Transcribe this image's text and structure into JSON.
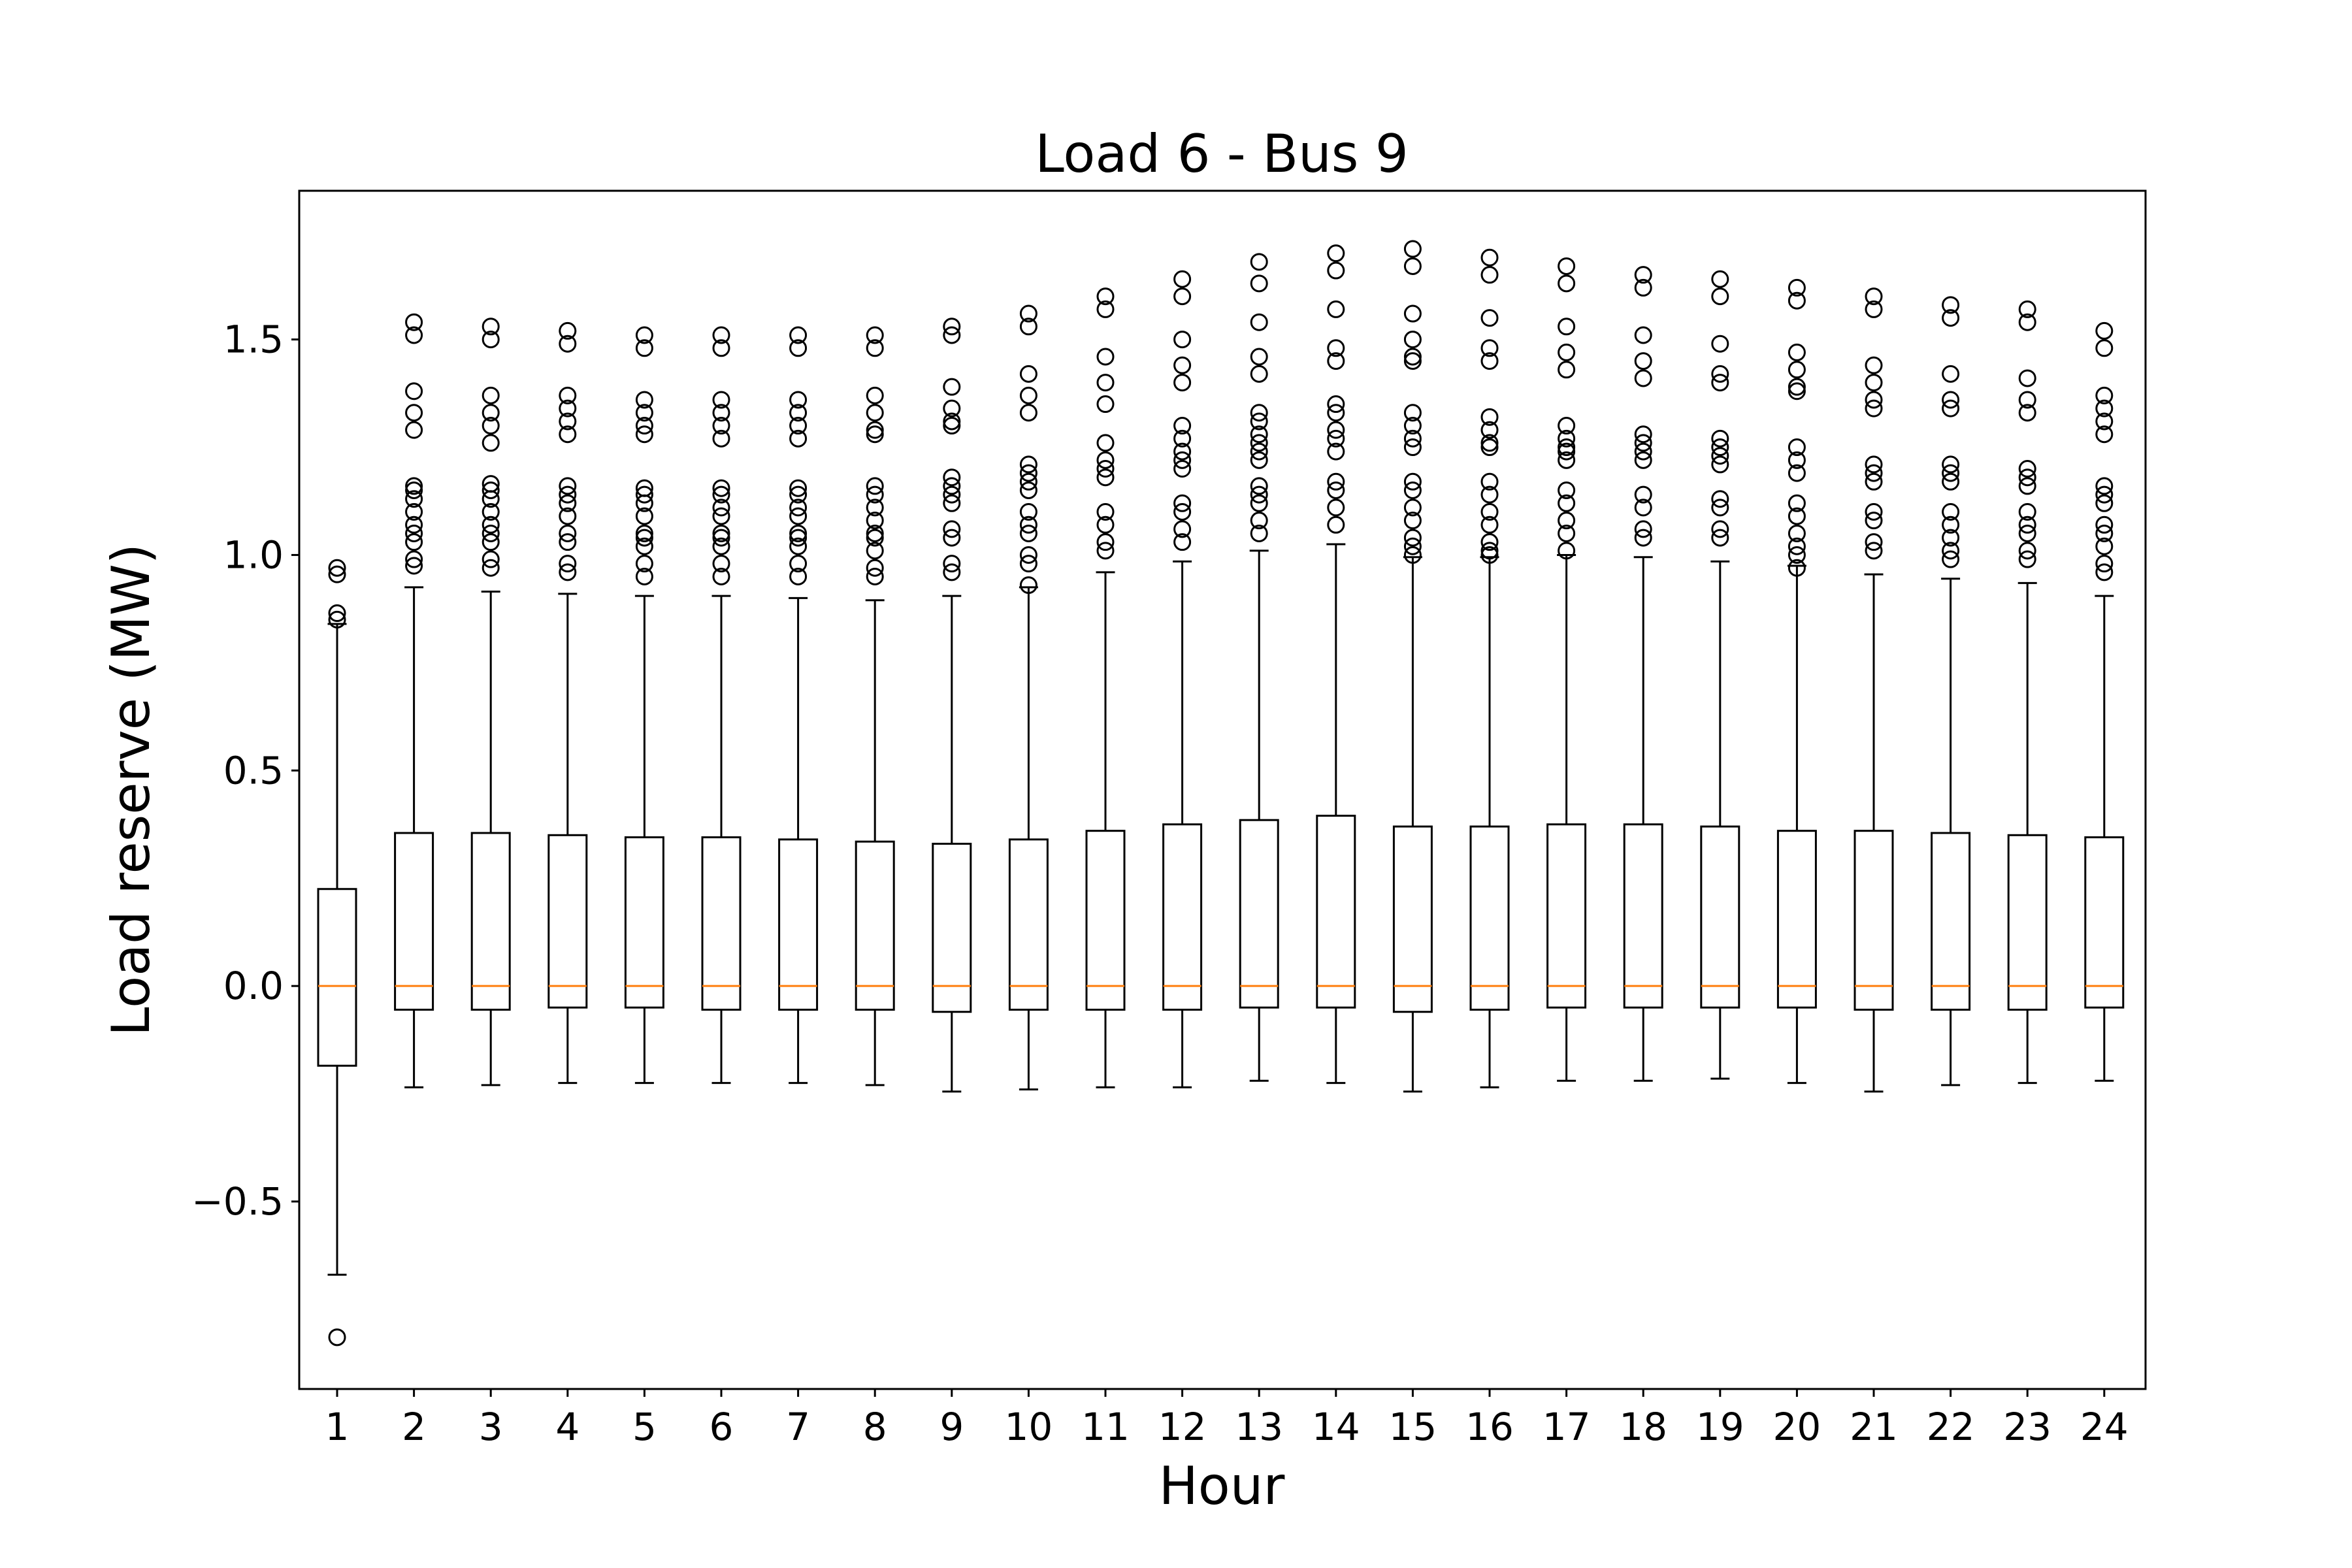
{
  "chart_data": {
    "type": "boxplot",
    "title": "Load 6 - Bus 9",
    "xlabel": "Hour",
    "ylabel": "Load reserve (MW)",
    "ylim": [
      -0.935,
      1.845
    ],
    "yticks": [
      {
        "value": -0.5,
        "label": "−0.5"
      },
      {
        "value": 0.0,
        "label": "0.0"
      },
      {
        "value": 0.5,
        "label": "0.5"
      },
      {
        "value": 1.0,
        "label": "1.0"
      },
      {
        "value": 1.5,
        "label": "1.5"
      }
    ],
    "categories": [
      "1",
      "2",
      "3",
      "4",
      "5",
      "6",
      "7",
      "8",
      "9",
      "10",
      "11",
      "12",
      "13",
      "14",
      "15",
      "16",
      "17",
      "18",
      "19",
      "20",
      "21",
      "22",
      "23",
      "24"
    ],
    "colors": {
      "box": "#000000",
      "median": "#ff7f0e",
      "flier": "#000000"
    },
    "boxes": [
      {
        "whislo": -0.67,
        "q1": -0.185,
        "med": 0.0,
        "q3": 0.225,
        "whishi": 0.84,
        "fliers": [
          -0.815,
          0.865,
          0.85,
          0.955,
          0.97
        ]
      },
      {
        "whislo": -0.235,
        "q1": -0.055,
        "med": 0.0,
        "q3": 0.355,
        "whishi": 0.925,
        "fliers": [
          0.975,
          0.99,
          1.03,
          1.05,
          1.07,
          1.1,
          1.13,
          1.15,
          1.16,
          1.29,
          1.33,
          1.38,
          1.51,
          1.54
        ]
      },
      {
        "whislo": -0.23,
        "q1": -0.055,
        "med": 0.0,
        "q3": 0.355,
        "whishi": 0.915,
        "fliers": [
          0.97,
          0.99,
          1.03,
          1.05,
          1.07,
          1.1,
          1.13,
          1.15,
          1.165,
          1.26,
          1.3,
          1.33,
          1.37,
          1.5,
          1.53
        ]
      },
      {
        "whislo": -0.225,
        "q1": -0.05,
        "med": 0.0,
        "q3": 0.35,
        "whishi": 0.91,
        "fliers": [
          0.96,
          0.98,
          1.03,
          1.05,
          1.09,
          1.12,
          1.14,
          1.16,
          1.28,
          1.31,
          1.34,
          1.37,
          1.49,
          1.52
        ]
      },
      {
        "whislo": -0.225,
        "q1": -0.05,
        "med": 0.0,
        "q3": 0.345,
        "whishi": 0.905,
        "fliers": [
          0.95,
          0.98,
          1.02,
          1.04,
          1.05,
          1.09,
          1.12,
          1.14,
          1.155,
          1.28,
          1.3,
          1.33,
          1.36,
          1.48,
          1.51
        ]
      },
      {
        "whislo": -0.225,
        "q1": -0.055,
        "med": 0.0,
        "q3": 0.345,
        "whishi": 0.905,
        "fliers": [
          0.95,
          0.98,
          1.02,
          1.04,
          1.05,
          1.09,
          1.11,
          1.14,
          1.155,
          1.27,
          1.3,
          1.33,
          1.36,
          1.48,
          1.51
        ]
      },
      {
        "whislo": -0.225,
        "q1": -0.055,
        "med": 0.0,
        "q3": 0.34,
        "whishi": 0.9,
        "fliers": [
          0.95,
          0.98,
          1.02,
          1.04,
          1.05,
          1.09,
          1.11,
          1.14,
          1.155,
          1.27,
          1.3,
          1.33,
          1.36,
          1.48,
          1.51
        ]
      },
      {
        "whislo": -0.23,
        "q1": -0.055,
        "med": 0.0,
        "q3": 0.335,
        "whishi": 0.895,
        "fliers": [
          0.95,
          0.97,
          1.01,
          1.04,
          1.05,
          1.08,
          1.11,
          1.14,
          1.16,
          1.28,
          1.29,
          1.33,
          1.37,
          1.48,
          1.51
        ]
      },
      {
        "whislo": -0.245,
        "q1": -0.06,
        "med": 0.0,
        "q3": 0.33,
        "whishi": 0.905,
        "fliers": [
          0.96,
          0.98,
          1.04,
          1.06,
          1.12,
          1.14,
          1.16,
          1.18,
          1.3,
          1.31,
          1.34,
          1.39,
          1.51,
          1.53
        ]
      },
      {
        "whislo": -0.24,
        "q1": -0.055,
        "med": 0.0,
        "q3": 0.34,
        "whishi": 0.925,
        "fliers": [
          0.93,
          0.98,
          1.0,
          1.05,
          1.07,
          1.1,
          1.15,
          1.17,
          1.19,
          1.21,
          1.33,
          1.37,
          1.42,
          1.53,
          1.56
        ]
      },
      {
        "whislo": -0.235,
        "q1": -0.055,
        "med": 0.0,
        "q3": 0.36,
        "whishi": 0.96,
        "fliers": [
          1.01,
          1.03,
          1.07,
          1.1,
          1.18,
          1.2,
          1.22,
          1.26,
          1.35,
          1.4,
          1.46,
          1.57,
          1.6
        ]
      },
      {
        "whislo": -0.235,
        "q1": -0.055,
        "med": 0.0,
        "q3": 0.375,
        "whishi": 0.985,
        "fliers": [
          1.03,
          1.06,
          1.1,
          1.12,
          1.2,
          1.22,
          1.24,
          1.27,
          1.3,
          1.4,
          1.44,
          1.5,
          1.6,
          1.64
        ]
      },
      {
        "whislo": -0.22,
        "q1": -0.05,
        "med": 0.0,
        "q3": 0.385,
        "whishi": 1.01,
        "fliers": [
          1.05,
          1.08,
          1.12,
          1.14,
          1.16,
          1.22,
          1.24,
          1.26,
          1.28,
          1.31,
          1.33,
          1.42,
          1.46,
          1.54,
          1.63,
          1.68
        ]
      },
      {
        "whislo": -0.225,
        "q1": -0.05,
        "med": 0.0,
        "q3": 0.395,
        "whishi": 1.025,
        "fliers": [
          1.07,
          1.11,
          1.15,
          1.17,
          1.24,
          1.27,
          1.29,
          1.33,
          1.35,
          1.45,
          1.48,
          1.57,
          1.66,
          1.7
        ]
      },
      {
        "whislo": -0.245,
        "q1": -0.06,
        "med": 0.0,
        "q3": 0.37,
        "whishi": 0.995,
        "fliers": [
          1.0,
          1.02,
          1.04,
          1.08,
          1.11,
          1.15,
          1.17,
          1.25,
          1.27,
          1.3,
          1.33,
          1.45,
          1.46,
          1.5,
          1.56,
          1.67,
          1.71
        ]
      },
      {
        "whislo": -0.235,
        "q1": -0.055,
        "med": 0.0,
        "q3": 0.37,
        "whishi": 0.995,
        "fliers": [
          1.0,
          1.01,
          1.03,
          1.07,
          1.1,
          1.14,
          1.17,
          1.25,
          1.26,
          1.29,
          1.32,
          1.45,
          1.48,
          1.55,
          1.65,
          1.69
        ]
      },
      {
        "whislo": -0.22,
        "q1": -0.05,
        "med": 0.0,
        "q3": 0.375,
        "whishi": 1.0,
        "fliers": [
          1.01,
          1.05,
          1.08,
          1.12,
          1.15,
          1.22,
          1.24,
          1.25,
          1.27,
          1.3,
          1.43,
          1.47,
          1.53,
          1.63,
          1.67
        ]
      },
      {
        "whislo": -0.22,
        "q1": -0.05,
        "med": 0.0,
        "q3": 0.375,
        "whishi": 0.995,
        "fliers": [
          1.04,
          1.06,
          1.11,
          1.14,
          1.22,
          1.24,
          1.26,
          1.28,
          1.41,
          1.45,
          1.51,
          1.62,
          1.65
        ]
      },
      {
        "whislo": -0.215,
        "q1": -0.05,
        "med": 0.0,
        "q3": 0.37,
        "whishi": 0.985,
        "fliers": [
          1.04,
          1.06,
          1.11,
          1.13,
          1.21,
          1.23,
          1.25,
          1.27,
          1.4,
          1.42,
          1.49,
          1.6,
          1.64
        ]
      },
      {
        "whislo": -0.225,
        "q1": -0.05,
        "med": 0.0,
        "q3": 0.36,
        "whishi": 0.975,
        "fliers": [
          0.97,
          1.0,
          1.02,
          1.05,
          1.09,
          1.12,
          1.19,
          1.22,
          1.25,
          1.38,
          1.39,
          1.43,
          1.47,
          1.59,
          1.62
        ]
      },
      {
        "whislo": -0.245,
        "q1": -0.055,
        "med": 0.0,
        "q3": 0.36,
        "whishi": 0.955,
        "fliers": [
          1.01,
          1.03,
          1.08,
          1.1,
          1.17,
          1.19,
          1.21,
          1.34,
          1.36,
          1.4,
          1.44,
          1.57,
          1.6
        ]
      },
      {
        "whislo": -0.23,
        "q1": -0.055,
        "med": 0.0,
        "q3": 0.355,
        "whishi": 0.945,
        "fliers": [
          0.99,
          1.01,
          1.04,
          1.07,
          1.1,
          1.17,
          1.19,
          1.21,
          1.34,
          1.36,
          1.42,
          1.55,
          1.58
        ]
      },
      {
        "whislo": -0.225,
        "q1": -0.055,
        "med": 0.0,
        "q3": 0.35,
        "whishi": 0.935,
        "fliers": [
          0.99,
          1.01,
          1.05,
          1.07,
          1.1,
          1.16,
          1.18,
          1.2,
          1.33,
          1.36,
          1.41,
          1.54,
          1.57
        ]
      },
      {
        "whislo": -0.22,
        "q1": -0.05,
        "med": 0.0,
        "q3": 0.345,
        "whishi": 0.905,
        "fliers": [
          0.96,
          0.98,
          1.02,
          1.05,
          1.07,
          1.12,
          1.14,
          1.16,
          1.28,
          1.31,
          1.34,
          1.37,
          1.48,
          1.52
        ]
      }
    ]
  }
}
